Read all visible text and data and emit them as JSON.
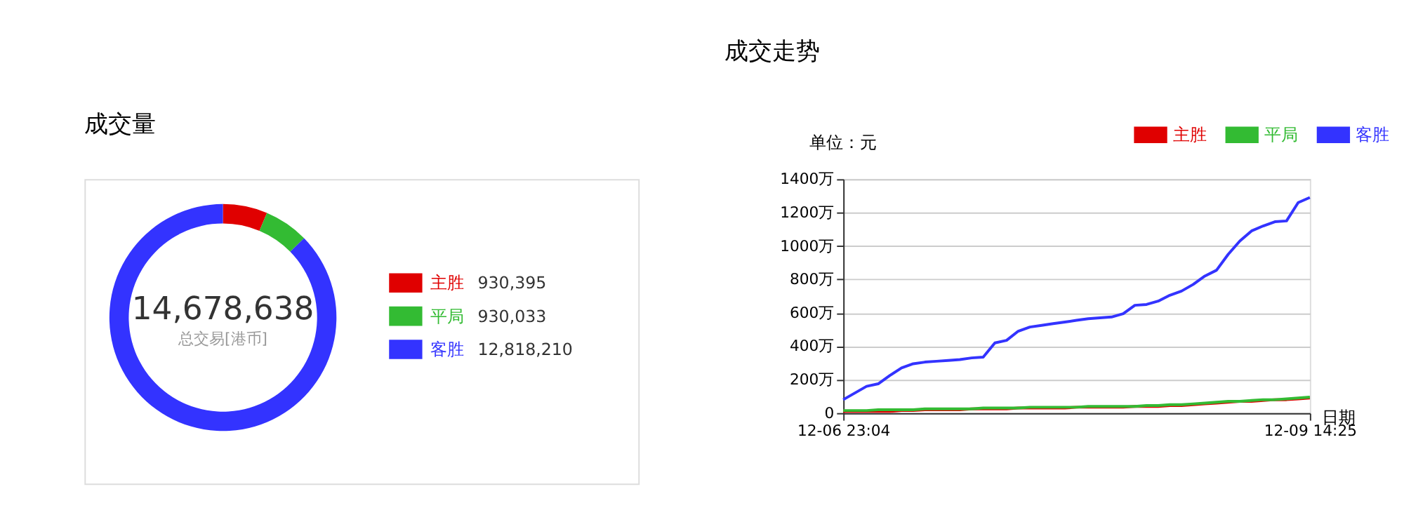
{
  "chart_data": [
    {
      "type": "donut",
      "title": "成交量",
      "categories": [
        "主胜",
        "平局",
        "客胜"
      ],
      "values": [
        930395,
        930033,
        12818210
      ],
      "colors": [
        "#e00000",
        "#33bb33",
        "#3333ff"
      ],
      "value_labels": [
        "930,395",
        "930,033",
        "12,818,210"
      ],
      "legend": "right",
      "annotations": [
        "14,678,638",
        "总交易[港币]"
      ]
    },
    {
      "type": "line",
      "title": "成交走势",
      "ylabel": "单位：元",
      "xlabel": "日期",
      "legend": "top right",
      "grid": "y",
      "marker": "none",
      "line_style": "solid",
      "ylim": [
        0,
        1400
      ],
      "yticks": [
        0,
        {
          "value": 200,
          "label": "200万"
        },
        {
          "value": 400,
          "label": "400万"
        },
        {
          "value": 600,
          "label": "600万"
        },
        {
          "value": 800,
          "label": "800万"
        },
        {
          "value": 1000,
          "label": "1000万"
        },
        {
          "value": 1200,
          "label": "1200万"
        },
        {
          "value": 1400,
          "label": "1400万"
        }
      ],
      "categories": [
        "12-06 23:04",
        null,
        null,
        null,
        null,
        null,
        null,
        null,
        null,
        null,
        null,
        null,
        null,
        null,
        null,
        null,
        null,
        null,
        null,
        null,
        null,
        null,
        null,
        null,
        null,
        null,
        null,
        null,
        null,
        null,
        null,
        null,
        null,
        null,
        null,
        null,
        null,
        null,
        null,
        null,
        "12-09 14:25"
      ],
      "series": [
        {
          "name": "主胜",
          "color": "#e00000",
          "values": [
            10,
            10,
            10,
            10,
            10,
            15,
            15,
            20,
            20,
            20,
            20,
            25,
            25,
            25,
            25,
            30,
            30,
            30,
            30,
            30,
            35,
            35,
            35,
            35,
            35,
            40,
            40,
            40,
            45,
            45,
            50,
            55,
            60,
            65,
            70,
            70,
            75,
            80,
            80,
            85,
            90
          ]
        },
        {
          "name": "平局",
          "color": "#33bb33",
          "values": [
            15,
            15,
            15,
            20,
            20,
            20,
            20,
            25,
            25,
            25,
            25,
            25,
            30,
            30,
            30,
            30,
            35,
            35,
            35,
            35,
            35,
            40,
            40,
            40,
            40,
            40,
            45,
            45,
            50,
            50,
            55,
            60,
            65,
            70,
            70,
            75,
            80,
            80,
            85,
            90,
            95
          ]
        },
        {
          "name": "客胜",
          "color": "#3333ff",
          "values": [
            80,
            120,
            160,
            175,
            225,
            270,
            295,
            305,
            310,
            315,
            320,
            330,
            335,
            420,
            435,
            490,
            515,
            525,
            535,
            545,
            555,
            565,
            570,
            575,
            595,
            645,
            650,
            670,
            705,
            730,
            770,
            820,
            855,
            950,
            1030,
            1090,
            1120,
            1145,
            1150,
            1260,
            1290
          ]
        }
      ]
    }
  ]
}
